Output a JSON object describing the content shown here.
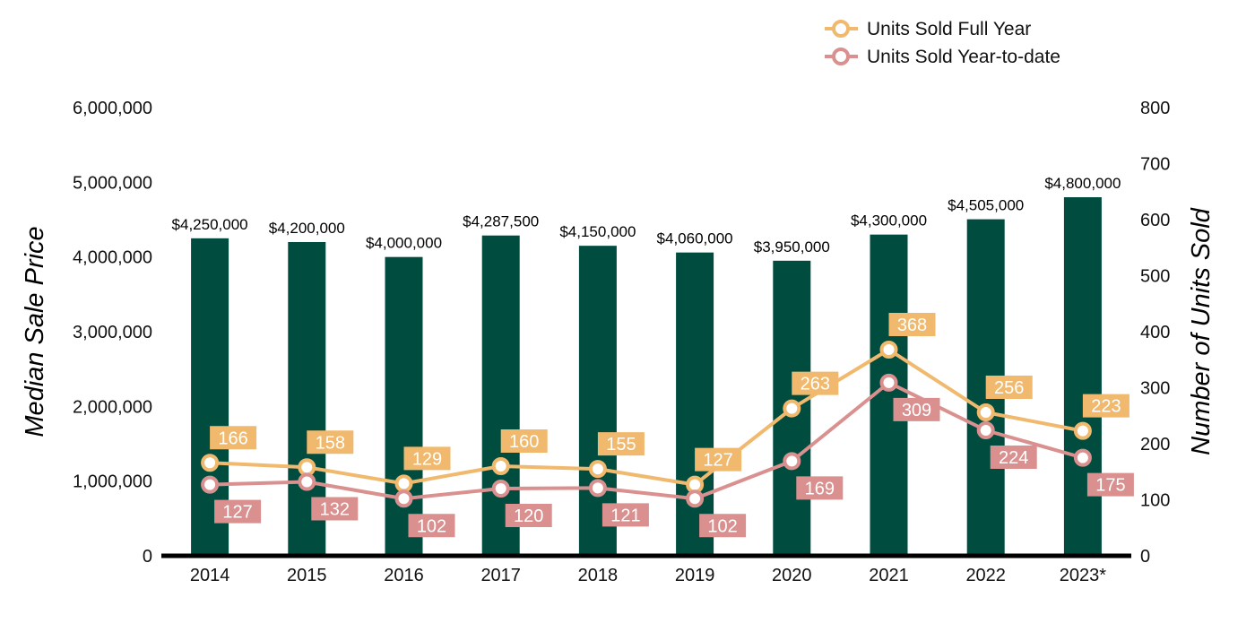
{
  "chart_data": {
    "type": "bar",
    "categories": [
      "2014",
      "2015",
      "2016",
      "2017",
      "2018",
      "2019",
      "2020",
      "2021",
      "2022",
      "2023*"
    ],
    "bars": {
      "values": [
        4250000,
        4200000,
        4000000,
        4287500,
        4150000,
        4060000,
        3950000,
        4300000,
        4505000,
        4800000
      ],
      "labels": [
        "$4,250,000",
        "$4,200,000",
        "$4,000,000",
        "$4,287,500",
        "$4,150,000",
        "$4,060,000",
        "$3,950,000",
        "$4,300,000",
        "$4,505,000",
        "$4,800,000"
      ],
      "color": "#004d40",
      "axis": "left"
    },
    "series": [
      {
        "name": "Units Sold Full Year",
        "type": "line",
        "axis": "right",
        "color": "#f0b96e",
        "values": [
          166,
          158,
          129,
          160,
          155,
          127,
          263,
          368,
          256,
          223
        ]
      },
      {
        "name": "Units Sold Year-to-date",
        "type": "line",
        "axis": "right",
        "color": "#d9908f",
        "values": [
          127,
          132,
          102,
          120,
          121,
          102,
          169,
          309,
          224,
          175
        ]
      }
    ],
    "ylabel": "Median Sale Price",
    "y2label": "Number of Units Sold",
    "ylim": [
      0,
      6000000
    ],
    "y2lim": [
      0,
      800
    ],
    "yticks": [
      "0",
      "1,000,000",
      "2,000,000",
      "3,000,000",
      "4,000,000",
      "5,000,000",
      "6,000,000"
    ],
    "y2ticks": [
      "0",
      "100",
      "200",
      "300",
      "400",
      "500",
      "600",
      "700",
      "800"
    ],
    "legend_position": "top-right",
    "grid": false
  }
}
